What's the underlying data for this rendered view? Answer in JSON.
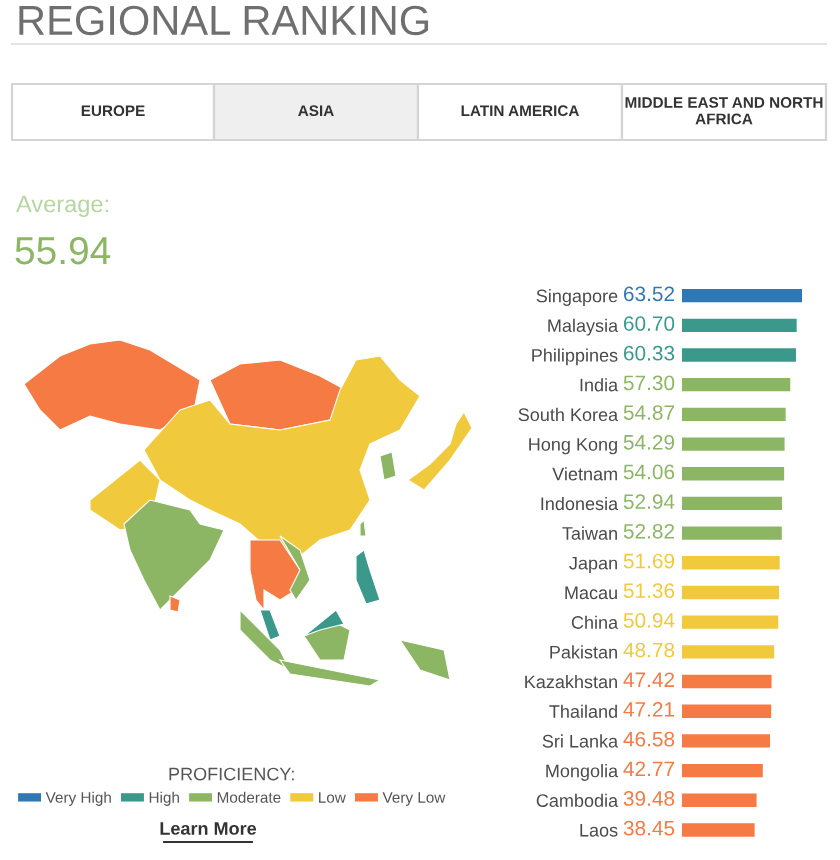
{
  "chart_data": {
    "type": "bar",
    "orientation": "horizontal",
    "stacked": true,
    "title": "REGIONAL RANKING",
    "categories": [
      "Singapore",
      "Malaysia",
      "Philippines",
      "India",
      "South Korea",
      "Hong Kong",
      "Vietnam",
      "Indonesia",
      "Taiwan",
      "Japan",
      "Macau",
      "China",
      "Pakistan",
      "Kazakhstan",
      "Thailand",
      "Sri Lanka",
      "Mongolia",
      "Cambodia",
      "Laos"
    ],
    "series": [
      {
        "name": "Very High",
        "color": "#2f78b4",
        "values": [
          63.52,
          null,
          null,
          null,
          null,
          null,
          null,
          null,
          null,
          null,
          null,
          null,
          null,
          null,
          null,
          null,
          null,
          null,
          null
        ],
        "value_labels": [
          "63.52",
          null,
          null,
          null,
          null,
          null,
          null,
          null,
          null,
          null,
          null,
          null,
          null,
          null,
          null,
          null,
          null,
          null,
          null
        ]
      },
      {
        "name": "High",
        "color": "#3a998a",
        "values": [
          null,
          60.7,
          60.33,
          null,
          null,
          null,
          null,
          null,
          null,
          null,
          null,
          null,
          null,
          null,
          null,
          null,
          null,
          null,
          null
        ],
        "value_labels": [
          null,
          "60.70",
          "60.33",
          null,
          null,
          null,
          null,
          null,
          null,
          null,
          null,
          null,
          null,
          null,
          null,
          null,
          null,
          null,
          null
        ]
      },
      {
        "name": "Moderate",
        "color": "#8cb564",
        "values": [
          null,
          null,
          null,
          57.3,
          54.87,
          54.29,
          54.06,
          52.94,
          52.82,
          null,
          null,
          null,
          null,
          null,
          null,
          null,
          null,
          null,
          null
        ],
        "value_labels": [
          null,
          null,
          null,
          "57.30",
          "54.87",
          "54.29",
          "54.06",
          "52.94",
          "52.82",
          null,
          null,
          null,
          null,
          null,
          null,
          null,
          null,
          null,
          null
        ]
      },
      {
        "name": "Low",
        "color": "#f1c93d",
        "values": [
          null,
          null,
          null,
          null,
          null,
          null,
          null,
          null,
          null,
          51.69,
          51.36,
          50.94,
          48.78,
          null,
          null,
          null,
          null,
          null,
          null
        ],
        "value_labels": [
          null,
          null,
          null,
          null,
          null,
          null,
          null,
          null,
          null,
          "51.69",
          "51.36",
          "50.94",
          "48.78",
          null,
          null,
          null,
          null,
          null,
          null
        ]
      },
      {
        "name": "Very Low",
        "color": "#f67a44",
        "values": [
          null,
          null,
          null,
          null,
          null,
          null,
          null,
          null,
          null,
          null,
          null,
          null,
          null,
          47.42,
          47.21,
          46.58,
          42.77,
          39.48,
          38.45
        ],
        "value_labels": [
          null,
          null,
          null,
          null,
          null,
          null,
          null,
          null,
          null,
          null,
          null,
          null,
          null,
          "47.42",
          "47.21",
          "46.58",
          "42.77",
          "39.48",
          "38.45"
        ]
      }
    ],
    "legend": "bottom left",
    "legend_title": "PROFICIENCY:",
    "annotations": [
      "EUROPE",
      "ASIA",
      "LATIN AMERICA",
      "MIDDLE EAST AND NORTH AFRICA",
      "Average:",
      "55.94",
      "Learn More"
    ]
  }
}
